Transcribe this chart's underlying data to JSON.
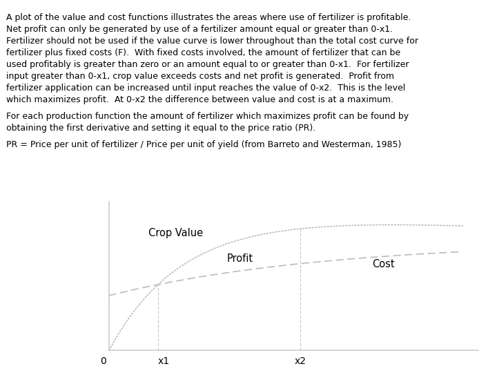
{
  "paragraph1": [
    "A plot of the value and cost functions illustrates the areas where use of fertilizer is profitable.",
    "Net profit can only be generated by use of a fertilizer amount equal or greater than 0-x1.",
    "Fertilizer should not be used if the value curve is lower throughout than the total cost curve for",
    "fertilizer plus fixed costs (F).  With fixed costs involved, the amount of fertilizer that can be",
    "used profitably is greater than zero or an amount equal to or greater than 0-x1.  For fertilizer",
    "input greater than 0-x1, crop value exceeds costs and net profit is generated.  Profit from",
    "fertilizer application can be increased until input reaches the value of 0-x2.  This is the level",
    "which maximizes profit.  At 0-x2 the difference between value and cost is at a maximum."
  ],
  "paragraph2": [
    "For each production function the amount of fertilizer which maximizes profit can be found by",
    "obtaining the first derivative and setting it equal to the price ratio (PR)."
  ],
  "paragraph3": [
    "PR = Price per unit of fertilizer / Price per unit of yield (from Barreto and Westerman, 1985)"
  ],
  "background_color": "#ffffff",
  "curve_color": "#bbbbbb",
  "axis_color": "#cccccc",
  "text_color": "#000000",
  "font_size": 9.0,
  "label_font_size": 10.5,
  "crop_value_label": "Crop Value",
  "profit_label": "Profit",
  "cost_label": "Cost",
  "x0_label": "0",
  "x1_label": "x1",
  "x2_label": "x2"
}
